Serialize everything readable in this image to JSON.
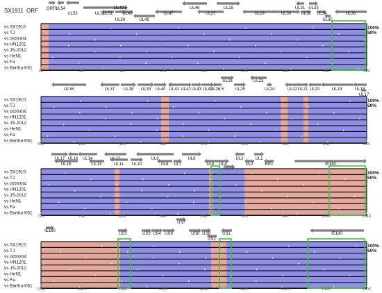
{
  "header": {
    "reference": "SX1911",
    "orf_label": "ORF"
  },
  "colors": {
    "coding": "#8f8fe8",
    "noncoding": "#e6a89c",
    "frame": "#111111",
    "arrow": "#7f7f7f",
    "highlight": "#3cc43c",
    "note_arrow": "#d9534f"
  },
  "legend": {
    "high": "100%",
    "low": "50%"
  },
  "comparisons": [
    "vs SX1910",
    "vs TJ",
    "vs GD0304",
    "vs HN1201",
    "vs JS-2012",
    "vs HeN1",
    "vs Fa",
    "vs Bartha-K61"
  ],
  "panels": [
    {
      "id": "p1",
      "axis": [
        "0K",
        "4K",
        "8K",
        "12K",
        "16K",
        "20K",
        "24K",
        "28K",
        "32K"
      ],
      "genes": [
        {
          "t": "ORF1",
          "dir": "r"
        },
        {
          "t": "UL54",
          "dir": "l"
        },
        {
          "t": "UL53",
          "dir": "l"
        },
        {
          "t": "UL52",
          "dir": "r"
        },
        {
          "t": "UL51",
          "dir": "l"
        },
        {
          "t": "UL49.5",
          "dir": "r"
        },
        {
          "t": "UL50",
          "dir": "r"
        },
        {
          "t": "UL49",
          "dir": "l"
        },
        {
          "t": "UL48",
          "dir": "l"
        },
        {
          "t": "UL47",
          "dir": "l"
        },
        {
          "t": "UL46",
          "dir": "l"
        },
        {
          "t": "UL27",
          "dir": "l"
        },
        {
          "t": "UL28",
          "dir": "r"
        },
        {
          "t": "UL29",
          "dir": "l"
        },
        {
          "t": "UL30",
          "dir": "r"
        },
        {
          "t": "UL31",
          "dir": "l"
        },
        {
          "t": "UL32",
          "dir": "r"
        },
        {
          "t": "UL33",
          "dir": "r"
        },
        {
          "t": "UL34",
          "dir": "r"
        },
        {
          "t": "UL35",
          "dir": "l"
        },
        {
          "t": "UL36",
          "dir": "l"
        }
      ]
    },
    {
      "id": "p2",
      "axis": [
        "36K",
        "40K",
        "44K",
        "48K",
        "52K",
        "56K",
        "60K",
        "64K",
        "68K"
      ],
      "genes": [
        {
          "t": "UL36",
          "dir": "l"
        },
        {
          "t": "UL37",
          "dir": "l"
        },
        {
          "t": "UL38",
          "dir": "r"
        },
        {
          "t": "UL39",
          "dir": "r"
        },
        {
          "t": "UL40",
          "dir": "r"
        },
        {
          "t": "UL41",
          "dir": "l"
        },
        {
          "t": "UL42",
          "dir": "r"
        },
        {
          "t": "UL43",
          "dir": "r"
        },
        {
          "t": "UL44",
          "dir": "r"
        },
        {
          "t": "UL26.5",
          "dir": "l"
        },
        {
          "t": "UL26",
          "dir": "r"
        },
        {
          "t": "UL25",
          "dir": "r"
        },
        {
          "t": "UL23",
          "dir": "l"
        },
        {
          "t": "UL24",
          "dir": "r"
        },
        {
          "t": "UL22",
          "dir": "l"
        },
        {
          "t": "UL21",
          "dir": "r"
        },
        {
          "t": "UL20",
          "dir": "l"
        },
        {
          "t": "UL19",
          "dir": "l"
        },
        {
          "t": "UL18",
          "dir": "l"
        },
        {
          "t": "UL17",
          "dir": "r"
        }
      ]
    },
    {
      "id": "p3",
      "axis": [
        "72K",
        "76K",
        "80K",
        "84K",
        "88K",
        "92K",
        "96K",
        "100K",
        "104K"
      ],
      "genes": [
        {
          "t": "UL17",
          "dir": "r"
        },
        {
          "t": "UL16",
          "dir": "l"
        },
        {
          "t": "UL15",
          "dir": "l"
        },
        {
          "t": "UL14",
          "dir": "l"
        },
        {
          "t": "UL13",
          "dir": "l"
        },
        {
          "t": "UL12",
          "dir": "l"
        },
        {
          "t": "UL11",
          "dir": "l"
        },
        {
          "t": "UL10",
          "dir": "r"
        },
        {
          "t": "UL9",
          "dir": "l"
        },
        {
          "t": "UL8",
          "dir": "l"
        },
        {
          "t": "UL7",
          "dir": "r"
        },
        {
          "t": "UL6",
          "dir": "r"
        },
        {
          "t": "UL5",
          "dir": "l"
        },
        {
          "t": "UL4",
          "dir": "r"
        },
        {
          "t": "UL3.5",
          "dir": "r"
        },
        {
          "t": "UL3",
          "dir": "l"
        },
        {
          "t": "UL2",
          "dir": "l"
        },
        {
          "t": "UL1",
          "dir": "r"
        },
        {
          "t": "EP0",
          "dir": "l"
        },
        {
          "t": "IE180",
          "dir": "r"
        }
      ]
    },
    {
      "id": "p4",
      "axis": [
        "108K",
        "112K",
        "116K",
        "120K",
        "124K",
        "128K",
        "132K",
        "136K",
        "140K"
      ],
      "genes": [
        {
          "t": "IE180",
          "dir": "r"
        },
        {
          "t": "US1",
          "dir": "r"
        },
        {
          "t": "US3",
          "dir": "r"
        },
        {
          "t": "US4",
          "dir": "r"
        },
        {
          "t": "US6",
          "dir": "r"
        },
        {
          "t": "US7",
          "dir": "r"
        },
        {
          "t": "US8",
          "dir": "r"
        },
        {
          "t": "US9",
          "dir": "r"
        },
        {
          "t": "US2",
          "dir": "l"
        },
        {
          "t": "US1",
          "dir": "l"
        },
        {
          "t": "IE180",
          "dir": "l"
        }
      ]
    }
  ]
}
